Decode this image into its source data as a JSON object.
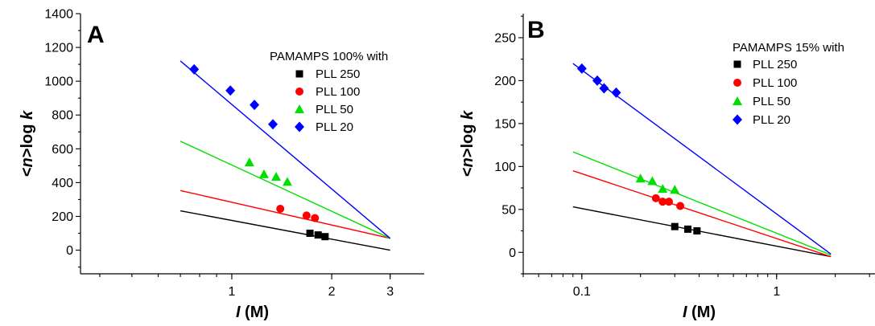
{
  "chart_data": [
    {
      "panel": "A",
      "type": "scatter",
      "xscale": "log",
      "xlim": [
        0.35,
        3.8
      ],
      "ylim": [
        -140,
        1400
      ],
      "xticks": [
        1,
        2,
        3
      ],
      "yticks": [
        0,
        200,
        400,
        600,
        800,
        1000,
        1200,
        1400
      ],
      "xlabel_italic": "I",
      "xlabel_rest": " (M)",
      "ylabel_prefix": "<",
      "ylabel_n": "n",
      "ylabel_mid": ">log ",
      "ylabel_k": "k",
      "legend_title": "PAMAMPS 100% with",
      "legend_position": "top-right",
      "series": [
        {
          "name": "PLL 250",
          "color": "#000000",
          "marker": "square",
          "x": [
            1.72,
            1.82,
            1.91
          ],
          "y": [
            100,
            90,
            80
          ],
          "fit": {
            "x": [
              0.7,
              3.0
            ],
            "y": [
              233,
              0
            ]
          }
        },
        {
          "name": "PLL 100",
          "color": "#ff0000",
          "marker": "circle",
          "x": [
            1.4,
            1.68,
            1.78
          ],
          "y": [
            245,
            205,
            190
          ],
          "fit": {
            "x": [
              0.7,
              3.0
            ],
            "y": [
              353,
              70
            ]
          }
        },
        {
          "name": "PLL 50",
          "color": "#00e000",
          "marker": "triangle",
          "x": [
            1.13,
            1.25,
            1.36,
            1.47
          ],
          "y": [
            520,
            450,
            435,
            405
          ],
          "fit": {
            "x": [
              0.7,
              3.0
            ],
            "y": [
              645,
              70
            ]
          }
        },
        {
          "name": "PLL 20",
          "color": "#0000ff",
          "marker": "diamond",
          "x": [
            0.77,
            0.99,
            1.17,
            1.33
          ],
          "y": [
            1070,
            945,
            860,
            745
          ],
          "fit": {
            "x": [
              0.7,
              3.0
            ],
            "y": [
              1120,
              70
            ]
          }
        }
      ]
    },
    {
      "panel": "B",
      "type": "scatter",
      "xscale": "log",
      "xlim": [
        0.05,
        3.2
      ],
      "ylim": [
        -25,
        278
      ],
      "xticks": [
        0.1,
        1
      ],
      "yticks": [
        0,
        50,
        100,
        150,
        200,
        250
      ],
      "xlabel_italic": "I",
      "xlabel_rest": " (M)",
      "ylabel_prefix": "<",
      "ylabel_n": "n",
      "ylabel_mid": ">log ",
      "ylabel_k": "k",
      "legend_title": "PAMAMPS 15% with",
      "legend_position": "top-right",
      "series": [
        {
          "name": "PLL 250",
          "color": "#000000",
          "marker": "square",
          "x": [
            0.3,
            0.35,
            0.39
          ],
          "y": [
            30,
            27,
            25
          ],
          "fit": {
            "x": [
              0.09,
              1.9
            ],
            "y": [
              53,
              -5
            ]
          }
        },
        {
          "name": "PLL 100",
          "color": "#ff0000",
          "marker": "circle",
          "x": [
            0.24,
            0.26,
            0.28,
            0.32
          ],
          "y": [
            63,
            59,
            59,
            54
          ],
          "fit": {
            "x": [
              0.09,
              1.9
            ],
            "y": [
              95,
              -5
            ]
          }
        },
        {
          "name": "PLL 50",
          "color": "#00e000",
          "marker": "triangle",
          "x": [
            0.2,
            0.23,
            0.26,
            0.3
          ],
          "y": [
            86,
            83,
            74,
            73
          ],
          "fit": {
            "x": [
              0.09,
              1.9
            ],
            "y": [
              117,
              -3
            ]
          }
        },
        {
          "name": "PLL 20",
          "color": "#0000ff",
          "marker": "diamond",
          "x": [
            0.1,
            0.12,
            0.13,
            0.15
          ],
          "y": [
            214,
            200,
            191,
            186
          ],
          "fit": {
            "x": [
              0.09,
              1.9
            ],
            "y": [
              220,
              -2
            ]
          }
        }
      ]
    }
  ]
}
